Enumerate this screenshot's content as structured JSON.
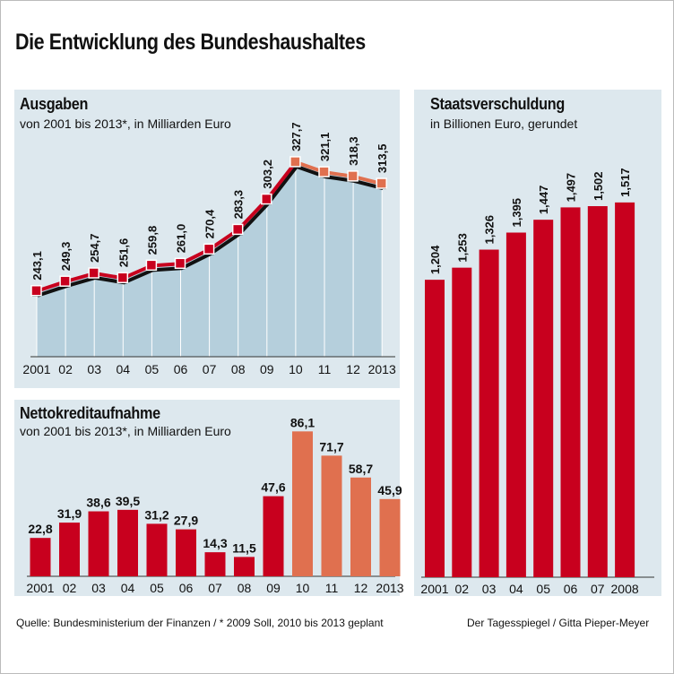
{
  "title": "Die Entwicklung des Bundeshaushaltes",
  "footer": {
    "source": "Quelle: Bundesministerium der Finanzen / * 2009 Soll, 2010 bis 2013 geplant",
    "credit": "Der Tagesspiegel / Gitta Pieper-Meyer"
  },
  "colors": {
    "panel_bg": "#dde8ee",
    "area_fill": "#b5cfdc",
    "actual_red": "#c8001e",
    "planned_orange": "#e0704f",
    "shadow": "#111111"
  },
  "chart_data": [
    {
      "id": "ausgaben",
      "type": "line",
      "title": "Ausgaben",
      "subtitle": "von 2001 bis 2013*, in Milliarden Euro",
      "categories": [
        "2001",
        "02",
        "03",
        "04",
        "05",
        "06",
        "07",
        "08",
        "09",
        "10",
        "11",
        "12",
        "2013"
      ],
      "values": [
        243.1,
        249.3,
        254.7,
        251.6,
        259.8,
        261.0,
        270.4,
        283.3,
        303.2,
        327.7,
        321.1,
        318.3,
        313.5
      ],
      "labels": [
        "243,1",
        "249,3",
        "254,7",
        "251,6",
        "259,8",
        "261,0",
        "270,4",
        "283,3",
        "303,2",
        "327,7",
        "321,1",
        "318,3",
        "313,5"
      ],
      "planned_from_index": 9,
      "ylim": [
        200,
        340
      ],
      "grid": true
    },
    {
      "id": "nettokredit",
      "type": "bar",
      "title": "Nettokreditaufnahme",
      "subtitle": "von 2001 bis 2013*, in Milliarden Euro",
      "categories": [
        "2001",
        "02",
        "03",
        "04",
        "05",
        "06",
        "07",
        "08",
        "09",
        "10",
        "11",
        "12",
        "2013"
      ],
      "values": [
        22.8,
        31.9,
        38.6,
        39.5,
        31.2,
        27.9,
        14.3,
        11.5,
        47.6,
        86.1,
        71.7,
        58.7,
        45.9
      ],
      "labels": [
        "22,8",
        "31,9",
        "38,6",
        "39,5",
        "31,2",
        "27,9",
        "14,3",
        "11,5",
        "47,6",
        "86,1",
        "71,7",
        "58,7",
        "45,9"
      ],
      "planned_from_index": 9,
      "ylim": [
        0,
        90
      ]
    },
    {
      "id": "staatsverschuldung",
      "type": "bar",
      "title": "Staatsverschuldung",
      "subtitle": "in Billionen Euro, gerundet",
      "categories": [
        "2001",
        "02",
        "03",
        "04",
        "05",
        "06",
        "07",
        "2008"
      ],
      "values": [
        1.204,
        1.253,
        1.326,
        1.395,
        1.447,
        1.497,
        1.502,
        1.517
      ],
      "labels": [
        "1,204",
        "1,253",
        "1,326",
        "1,395",
        "1,447",
        "1,497",
        "1,502",
        "1,517"
      ],
      "ylim": [
        0,
        1.6
      ]
    }
  ]
}
